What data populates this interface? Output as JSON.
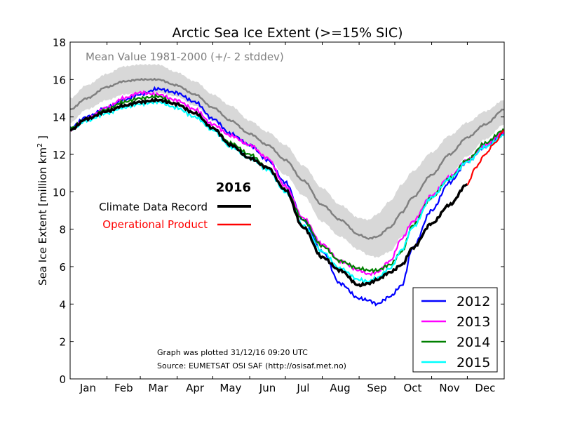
{
  "chart_data": {
    "type": "line",
    "title": "Arctic Sea Ice Extent (>=15% SIC)",
    "ylabel": "Sea Ice Extent [million km",
    "ylabel_sup": "2",
    "ylabel_end": " ]",
    "ylim": [
      0,
      18
    ],
    "xlim": [
      1,
      366
    ],
    "yticks": [
      0,
      2,
      4,
      6,
      8,
      10,
      12,
      14,
      16,
      18
    ],
    "months": [
      {
        "label": "Jan",
        "day": 16
      },
      {
        "label": "Feb",
        "day": 46
      },
      {
        "label": "Mar",
        "day": 75
      },
      {
        "label": "Apr",
        "day": 106
      },
      {
        "label": "May",
        "day": 136
      },
      {
        "label": "Jun",
        "day": 167
      },
      {
        "label": "Jul",
        "day": 197
      },
      {
        "label": "Aug",
        "day": 228
      },
      {
        "label": "Sep",
        "day": 259
      },
      {
        "label": "Oct",
        "day": 289
      },
      {
        "label": "Nov",
        "day": 320
      },
      {
        "label": "Dec",
        "day": 350
      }
    ],
    "mean_label": "Mean Value 1981-2000 (+/- 2 stddev)",
    "year_label": "2016",
    "cdr_label": "Climate Data Record",
    "op_label": "Operational Product",
    "note_plotted": "Graph was plotted 31/12/16 09:20 UTC",
    "note_source": "Source: EUMETSAT OSI SAF (http://osisaf.met.no)",
    "colors": {
      "mean": "#808080",
      "band": "#d8d8d8",
      "cdr": "#000000",
      "operational": "#ff0000"
    },
    "mean_series": {
      "name": "Mean Value 1981-2000",
      "x": [
        1,
        15,
        32,
        46,
        60,
        75,
        90,
        106,
        121,
        136,
        152,
        167,
        182,
        197,
        213,
        228,
        244,
        252,
        259,
        270,
        280,
        289,
        305,
        320,
        335,
        350,
        366
      ],
      "y": [
        14.4,
        15.0,
        15.6,
        15.9,
        16.0,
        16.0,
        15.7,
        15.2,
        14.5,
        13.8,
        13.1,
        12.5,
        11.7,
        10.6,
        9.3,
        8.5,
        7.7,
        7.5,
        7.6,
        8.1,
        8.9,
        9.7,
        10.9,
        12.0,
        12.9,
        13.6,
        14.4
      ],
      "upper": [
        15.0,
        15.7,
        16.3,
        16.7,
        16.8,
        16.8,
        16.4,
        15.9,
        15.2,
        14.6,
        13.8,
        13.2,
        12.5,
        11.4,
        10.2,
        9.3,
        8.6,
        8.5,
        8.8,
        9.5,
        10.4,
        11.1,
        12.1,
        13.0,
        13.7,
        14.3,
        14.9
      ],
      "lower": [
        13.7,
        14.4,
        14.9,
        15.2,
        15.3,
        15.3,
        15.1,
        14.6,
        13.8,
        13.0,
        12.4,
        11.8,
        10.9,
        9.8,
        8.4,
        7.6,
        6.9,
        6.6,
        6.5,
        6.8,
        7.6,
        8.3,
        9.6,
        10.9,
        11.9,
        12.8,
        13.6
      ]
    },
    "series": [
      {
        "name": "2012",
        "color": "#0000ff",
        "x": [
          1,
          15,
          32,
          46,
          60,
          75,
          90,
          106,
          121,
          136,
          152,
          167,
          182,
          197,
          213,
          228,
          244,
          252,
          259,
          270,
          280,
          289,
          305,
          320,
          335,
          350,
          366
        ],
        "y": [
          13.4,
          14.0,
          14.5,
          14.9,
          15.2,
          15.5,
          15.3,
          14.8,
          13.9,
          13.1,
          12.5,
          11.7,
          10.5,
          8.5,
          6.8,
          5.1,
          4.3,
          4.2,
          4.0,
          4.4,
          5.0,
          7.0,
          9.0,
          10.5,
          11.6,
          12.4,
          13.1
        ]
      },
      {
        "name": "2013",
        "color": "#ff00ff",
        "x": [
          1,
          15,
          32,
          46,
          60,
          75,
          90,
          106,
          121,
          136,
          152,
          167,
          182,
          197,
          213,
          228,
          244,
          252,
          259,
          270,
          280,
          289,
          305,
          320,
          335,
          350,
          366
        ],
        "y": [
          13.3,
          13.9,
          14.5,
          15.0,
          15.3,
          15.2,
          14.9,
          14.4,
          13.6,
          13.0,
          12.5,
          11.8,
          10.3,
          8.6,
          7.2,
          6.3,
          5.8,
          5.6,
          5.7,
          6.3,
          7.5,
          8.4,
          9.8,
          10.8,
          11.7,
          12.5,
          13.2
        ]
      },
      {
        "name": "2014",
        "color": "#008000",
        "x": [
          1,
          15,
          32,
          46,
          60,
          75,
          90,
          106,
          121,
          136,
          152,
          167,
          182,
          197,
          213,
          228,
          244,
          252,
          259,
          270,
          280,
          289,
          305,
          320,
          335,
          350,
          366
        ],
        "y": [
          13.4,
          13.9,
          14.4,
          14.8,
          15.0,
          15.1,
          14.7,
          14.2,
          13.4,
          12.6,
          12.0,
          11.3,
          10.1,
          8.5,
          7.1,
          6.3,
          5.9,
          5.8,
          5.8,
          6.1,
          6.8,
          8.2,
          9.7,
          10.7,
          11.7,
          12.6,
          13.3
        ]
      },
      {
        "name": "2015",
        "color": "#00ffff",
        "x": [
          1,
          15,
          32,
          46,
          60,
          75,
          90,
          106,
          121,
          136,
          152,
          167,
          182,
          197,
          213,
          228,
          244,
          252,
          259,
          270,
          280,
          289,
          305,
          320,
          335,
          350,
          366
        ],
        "y": [
          13.3,
          13.8,
          14.2,
          14.5,
          14.7,
          14.8,
          14.5,
          14.0,
          13.3,
          12.4,
          11.8,
          11.2,
          10.0,
          8.2,
          6.8,
          5.9,
          5.3,
          5.2,
          5.4,
          5.9,
          6.9,
          8.1,
          9.7,
          10.7,
          11.6,
          12.4,
          13.0
        ]
      }
    ],
    "cdr_2016": {
      "name": "Climate Data Record",
      "x": [
        1,
        15,
        32,
        46,
        60,
        75,
        90,
        106,
        121,
        136,
        152,
        167,
        182,
        197,
        213,
        228,
        244,
        252,
        259,
        270,
        280,
        289,
        305,
        320,
        335
      ],
      "y": [
        13.3,
        13.9,
        14.3,
        14.6,
        14.8,
        14.9,
        14.7,
        14.2,
        13.4,
        12.5,
        11.8,
        11.3,
        10.1,
        8.1,
        6.5,
        5.8,
        5.0,
        5.1,
        5.3,
        5.7,
        6.1,
        7.0,
        8.3,
        9.3,
        10.4
      ]
    },
    "operational_2016": {
      "name": "Operational Product",
      "x": [
        335,
        342,
        350,
        358,
        366
      ],
      "y": [
        10.4,
        11.3,
        12.0,
        12.6,
        13.3
      ]
    }
  }
}
